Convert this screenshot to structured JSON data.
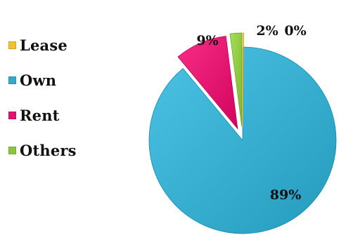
{
  "chart_data": {
    "type": "pie",
    "title": "",
    "legend_position": "left",
    "slices": [
      {
        "label": "Lease",
        "value": 0,
        "display": "0%",
        "color": "#f2c230"
      },
      {
        "label": "Own",
        "value": 89,
        "display": "89%",
        "color": "#33aacb"
      },
      {
        "label": "Rent",
        "value": 9,
        "display": "9%",
        "color": "#e0136d"
      },
      {
        "label": "Others",
        "value": 2,
        "display": "2%",
        "color": "#8cc63f"
      }
    ]
  }
}
